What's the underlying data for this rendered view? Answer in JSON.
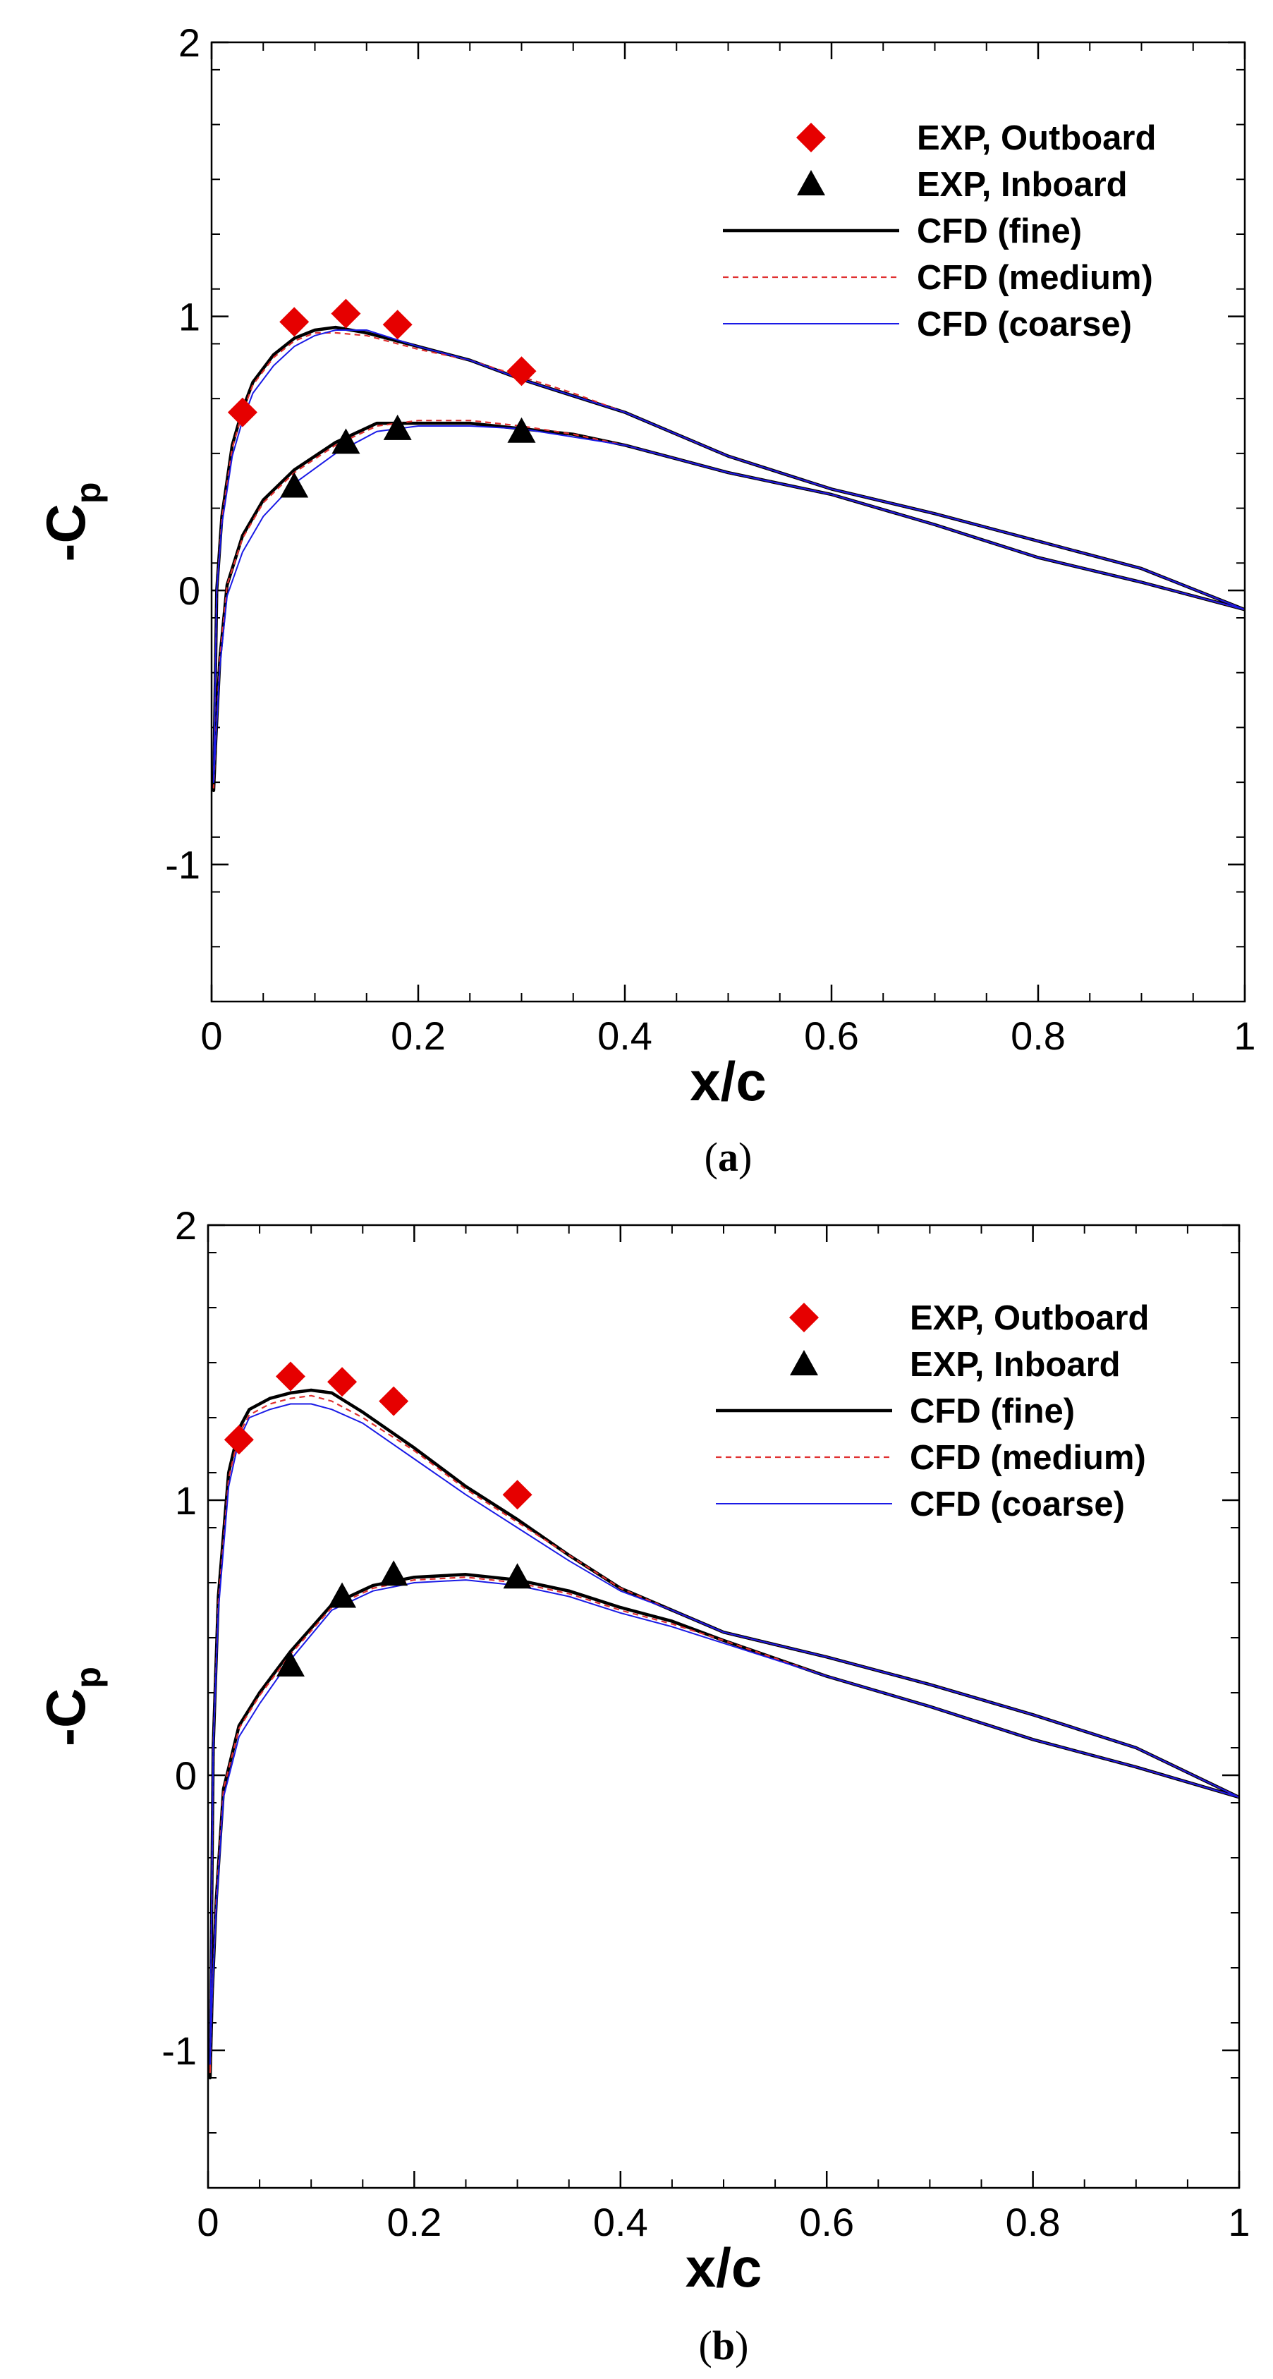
{
  "chart_data": [
    {
      "type": "line",
      "caption_open": "(",
      "caption": "a",
      "caption_close": ")",
      "xlabel": "x/c",
      "ylabel_main": "-C",
      "ylabel_sub": "p",
      "xlim": [
        0,
        1
      ],
      "ylim": [
        -1.5,
        2
      ],
      "xticks": [
        0,
        0.2,
        0.4,
        0.6,
        0.8,
        1
      ],
      "xtick_labels": [
        "0",
        "0.2",
        "0.4",
        "0.6",
        "0.8",
        "1"
      ],
      "yticks": [
        -1,
        0,
        1,
        2
      ],
      "ytick_labels": [
        "-1",
        "0",
        "1",
        "2"
      ],
      "legend": [
        "EXP, Outboard",
        "EXP, Inboard",
        "CFD (fine)",
        "CFD (medium)",
        "CFD (coarse)"
      ],
      "markers": [
        {
          "name": "EXP, Outboard",
          "shape": "diamond",
          "color": "#e60000",
          "x": [
            0.03,
            0.08,
            0.13,
            0.18,
            0.3
          ],
          "y": [
            0.65,
            0.98,
            1.01,
            0.97,
            0.8
          ]
        },
        {
          "name": "EXP, Inboard",
          "shape": "triangle",
          "color": "#000000",
          "x": [
            0.08,
            0.13,
            0.18,
            0.3
          ],
          "y": [
            0.38,
            0.54,
            0.59,
            0.58
          ]
        }
      ],
      "series": [
        {
          "name": "CFD (fine)",
          "color": "#000000",
          "dash": "none",
          "x": [
            1,
            0.9,
            0.8,
            0.7,
            0.6,
            0.5,
            0.45,
            0.4,
            0.35,
            0.3,
            0.25,
            0.2,
            0.15,
            0.12,
            0.1,
            0.08,
            0.06,
            0.04,
            0.03,
            0.02,
            0.01,
            0.005,
            0.002,
            0.004,
            0.008,
            0.015,
            0.03,
            0.05,
            0.08,
            0.12,
            0.16,
            0.2,
            0.25,
            0.3,
            0.35,
            0.4,
            0.45,
            0.5,
            0.6,
            0.7,
            0.8,
            0.9,
            1
          ],
          "y": [
            -0.07,
            0.08,
            0.18,
            0.28,
            0.37,
            0.49,
            0.57,
            0.65,
            0.71,
            0.77,
            0.84,
            0.89,
            0.94,
            0.96,
            0.95,
            0.92,
            0.86,
            0.76,
            0.66,
            0.53,
            0.27,
            0.0,
            -0.73,
            -0.55,
            -0.25,
            0.02,
            0.2,
            0.33,
            0.44,
            0.54,
            0.61,
            0.61,
            0.61,
            0.59,
            0.57,
            0.53,
            0.48,
            0.43,
            0.35,
            0.24,
            0.12,
            0.03,
            -0.07
          ]
        },
        {
          "name": "CFD (medium)",
          "color": "#e03030",
          "dash": "8 6",
          "x": [
            1,
            0.9,
            0.8,
            0.7,
            0.6,
            0.5,
            0.45,
            0.4,
            0.35,
            0.3,
            0.25,
            0.2,
            0.15,
            0.12,
            0.1,
            0.08,
            0.06,
            0.04,
            0.03,
            0.02,
            0.01,
            0.005,
            0.002,
            0.004,
            0.008,
            0.015,
            0.03,
            0.05,
            0.08,
            0.12,
            0.16,
            0.2,
            0.25,
            0.3,
            0.35,
            0.4,
            0.45,
            0.5,
            0.6,
            0.7,
            0.8,
            0.9,
            1
          ],
          "y": [
            -0.07,
            0.08,
            0.18,
            0.28,
            0.37,
            0.49,
            0.57,
            0.65,
            0.72,
            0.78,
            0.84,
            0.88,
            0.93,
            0.94,
            0.94,
            0.91,
            0.85,
            0.75,
            0.65,
            0.52,
            0.26,
            0.0,
            -0.72,
            -0.55,
            -0.25,
            0.02,
            0.19,
            0.32,
            0.43,
            0.53,
            0.6,
            0.62,
            0.62,
            0.6,
            0.57,
            0.53,
            0.48,
            0.43,
            0.35,
            0.24,
            0.12,
            0.03,
            -0.07
          ]
        },
        {
          "name": "CFD (coarse)",
          "color": "#1a1ae6",
          "dash": "none",
          "x": [
            1,
            0.9,
            0.8,
            0.7,
            0.6,
            0.5,
            0.45,
            0.4,
            0.35,
            0.3,
            0.25,
            0.2,
            0.15,
            0.12,
            0.1,
            0.08,
            0.06,
            0.04,
            0.03,
            0.02,
            0.01,
            0.005,
            0.002,
            0.004,
            0.008,
            0.015,
            0.03,
            0.05,
            0.08,
            0.12,
            0.16,
            0.2,
            0.25,
            0.3,
            0.35,
            0.4,
            0.45,
            0.5,
            0.6,
            0.7,
            0.8,
            0.9,
            1
          ],
          "y": [
            -0.07,
            0.08,
            0.18,
            0.28,
            0.37,
            0.49,
            0.57,
            0.65,
            0.71,
            0.77,
            0.84,
            0.89,
            0.95,
            0.95,
            0.93,
            0.89,
            0.82,
            0.72,
            0.62,
            0.49,
            0.24,
            0.0,
            -0.7,
            -0.55,
            -0.28,
            -0.02,
            0.14,
            0.27,
            0.39,
            0.5,
            0.58,
            0.6,
            0.6,
            0.59,
            0.56,
            0.53,
            0.48,
            0.43,
            0.35,
            0.24,
            0.12,
            0.03,
            -0.07
          ]
        }
      ]
    },
    {
      "type": "line",
      "caption_open": "(",
      "caption": "b",
      "caption_close": ")",
      "xlabel": "x/c",
      "ylabel_main": "-C",
      "ylabel_sub": "p",
      "xlim": [
        0,
        1
      ],
      "ylim": [
        -1.5,
        2
      ],
      "xticks": [
        0,
        0.2,
        0.4,
        0.6,
        0.8,
        1
      ],
      "xtick_labels": [
        "0",
        "0.2",
        "0.4",
        "0.6",
        "0.8",
        "1"
      ],
      "yticks": [
        -1,
        0,
        1,
        2
      ],
      "ytick_labels": [
        "-1",
        "0",
        "1",
        "2"
      ],
      "legend": [
        "EXP, Outboard",
        "EXP, Inboard",
        "CFD (fine)",
        "CFD (medium)",
        "CFD (coarse)"
      ],
      "markers": [
        {
          "name": "EXP, Outboard",
          "shape": "diamond",
          "color": "#e60000",
          "x": [
            0.03,
            0.08,
            0.13,
            0.18,
            0.3
          ],
          "y": [
            1.22,
            1.45,
            1.43,
            1.36,
            1.02
          ]
        },
        {
          "name": "EXP, Inboard",
          "shape": "triangle",
          "color": "#000000",
          "x": [
            0.08,
            0.13,
            0.18,
            0.3
          ],
          "y": [
            0.4,
            0.65,
            0.73,
            0.72
          ]
        }
      ],
      "series": [
        {
          "name": "CFD (fine)",
          "color": "#000000",
          "dash": "none",
          "x": [
            1,
            0.9,
            0.8,
            0.7,
            0.6,
            0.5,
            0.45,
            0.4,
            0.35,
            0.3,
            0.25,
            0.2,
            0.15,
            0.12,
            0.1,
            0.08,
            0.06,
            0.04,
            0.03,
            0.02,
            0.01,
            0.005,
            0.002,
            0.004,
            0.008,
            0.015,
            0.03,
            0.05,
            0.08,
            0.12,
            0.16,
            0.2,
            0.25,
            0.3,
            0.35,
            0.4,
            0.45,
            0.5,
            0.6,
            0.7,
            0.8,
            0.9,
            1
          ],
          "y": [
            -0.08,
            0.1,
            0.22,
            0.33,
            0.43,
            0.52,
            0.6,
            0.68,
            0.8,
            0.93,
            1.05,
            1.19,
            1.32,
            1.39,
            1.4,
            1.39,
            1.37,
            1.33,
            1.26,
            1.1,
            0.65,
            0.1,
            -1.1,
            -0.8,
            -0.45,
            -0.05,
            0.18,
            0.3,
            0.45,
            0.62,
            0.69,
            0.72,
            0.73,
            0.71,
            0.67,
            0.61,
            0.56,
            0.49,
            0.36,
            0.25,
            0.13,
            0.03,
            -0.08
          ]
        },
        {
          "name": "CFD (medium)",
          "color": "#e03030",
          "dash": "8 6",
          "x": [
            1,
            0.9,
            0.8,
            0.7,
            0.6,
            0.5,
            0.45,
            0.4,
            0.35,
            0.3,
            0.25,
            0.2,
            0.15,
            0.12,
            0.1,
            0.08,
            0.06,
            0.04,
            0.03,
            0.02,
            0.01,
            0.005,
            0.002,
            0.004,
            0.008,
            0.015,
            0.03,
            0.05,
            0.08,
            0.12,
            0.16,
            0.2,
            0.25,
            0.3,
            0.35,
            0.4,
            0.45,
            0.5,
            0.6,
            0.7,
            0.8,
            0.9,
            1
          ],
          "y": [
            -0.08,
            0.1,
            0.22,
            0.33,
            0.43,
            0.52,
            0.6,
            0.68,
            0.8,
            0.92,
            1.04,
            1.18,
            1.3,
            1.36,
            1.38,
            1.37,
            1.35,
            1.31,
            1.24,
            1.08,
            0.63,
            0.1,
            -1.08,
            -0.8,
            -0.45,
            -0.05,
            0.17,
            0.29,
            0.44,
            0.61,
            0.68,
            0.71,
            0.72,
            0.7,
            0.66,
            0.6,
            0.55,
            0.49,
            0.36,
            0.25,
            0.13,
            0.03,
            -0.08
          ]
        },
        {
          "name": "CFD (coarse)",
          "color": "#1a1ae6",
          "dash": "none",
          "x": [
            1,
            0.9,
            0.8,
            0.7,
            0.6,
            0.5,
            0.45,
            0.4,
            0.35,
            0.3,
            0.25,
            0.2,
            0.15,
            0.12,
            0.1,
            0.08,
            0.06,
            0.04,
            0.03,
            0.02,
            0.01,
            0.005,
            0.002,
            0.004,
            0.008,
            0.015,
            0.03,
            0.05,
            0.08,
            0.12,
            0.16,
            0.2,
            0.25,
            0.3,
            0.35,
            0.4,
            0.45,
            0.5,
            0.6,
            0.7,
            0.8,
            0.9,
            1
          ],
          "y": [
            -0.08,
            0.1,
            0.22,
            0.33,
            0.43,
            0.52,
            0.6,
            0.67,
            0.78,
            0.9,
            1.02,
            1.15,
            1.28,
            1.33,
            1.35,
            1.35,
            1.33,
            1.3,
            1.22,
            1.05,
            0.6,
            0.1,
            -1.05,
            -0.8,
            -0.48,
            -0.08,
            0.14,
            0.26,
            0.42,
            0.6,
            0.67,
            0.7,
            0.71,
            0.69,
            0.65,
            0.59,
            0.54,
            0.48,
            0.36,
            0.25,
            0.13,
            0.03,
            -0.08
          ]
        }
      ]
    }
  ]
}
